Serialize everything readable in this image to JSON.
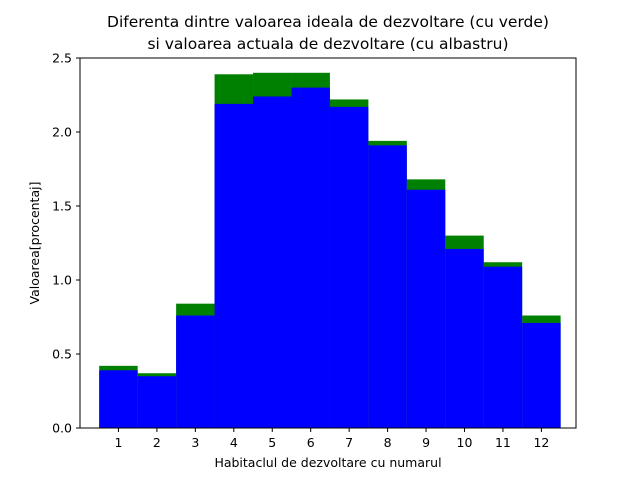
{
  "chart_data": {
    "type": "bar",
    "title_line1": "Diferenta dintre valoarea ideala de dezvoltare (cu verde)",
    "title_line2": "si valoarea actuala de dezvoltare (cu albastru)",
    "xlabel": "Habitaclul de dezvoltare cu numarul",
    "ylabel": "Valoarea[procentaj]",
    "categories": [
      "1",
      "2",
      "3",
      "4",
      "5",
      "6",
      "7",
      "8",
      "9",
      "10",
      "11",
      "12"
    ],
    "series": [
      {
        "color": "#008000",
        "values": [
          0.42,
          0.37,
          0.84,
          2.39,
          2.4,
          2.4,
          2.22,
          1.94,
          1.68,
          1.3,
          1.12,
          0.76
        ]
      },
      {
        "color": "#0000ff",
        "values": [
          0.39,
          0.35,
          0.76,
          2.19,
          2.24,
          2.3,
          2.17,
          1.91,
          1.61,
          1.21,
          1.09,
          0.71
        ]
      }
    ],
    "ylim": [
      0,
      2.5
    ],
    "yticks": [
      0.0,
      0.5,
      1.0,
      1.5,
      2.0,
      2.5
    ],
    "ytick_labels": [
      "0.0",
      "0.5",
      "1.0",
      "1.5",
      "2.0",
      "2.5"
    ],
    "xlim": [
      0.0,
      12.9
    ],
    "bar_width": 1.0,
    "grid": false,
    "legend": "none"
  }
}
